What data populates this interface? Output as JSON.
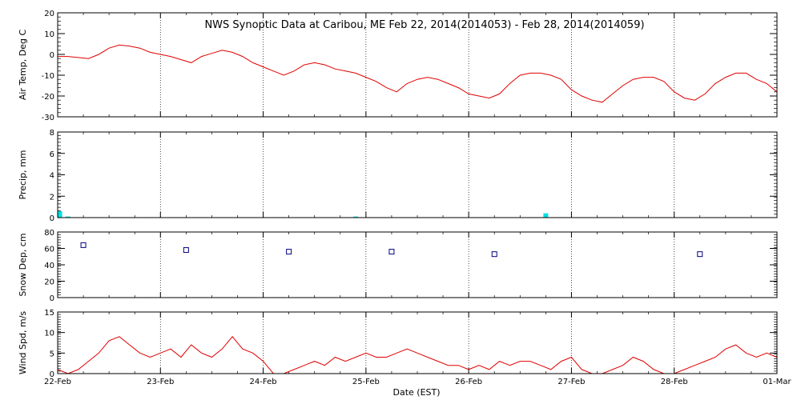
{
  "chart_data": {
    "title": "NWS Synoptic Data at Caribou, ME   Feb 22, 2014(2014053) - Feb 28, 2014(2014059)",
    "xlabel": "Date (EST)",
    "x_tick_labels": [
      "22-Feb",
      "23-Feb",
      "24-Feb",
      "25-Feb",
      "26-Feb",
      "27-Feb",
      "28-Feb",
      "01-Mar"
    ],
    "x_range_days": [
      0,
      7
    ],
    "grid": "dotted vertical at each day",
    "colors": {
      "line": "#e00000",
      "precip": "#00e0e0",
      "snow": "#000080"
    },
    "panels": [
      {
        "id": "air-temp",
        "type": "line",
        "ylabel": "Air Temp, Deg C",
        "ylim": [
          -30,
          20
        ],
        "yticks": [
          -30,
          -20,
          -10,
          0,
          10,
          20
        ],
        "x": [
          0,
          0.1,
          0.2,
          0.3,
          0.4,
          0.5,
          0.6,
          0.7,
          0.8,
          0.9,
          1.0,
          1.1,
          1.2,
          1.3,
          1.4,
          1.5,
          1.6,
          1.7,
          1.8,
          1.9,
          2.0,
          2.1,
          2.2,
          2.3,
          2.4,
          2.5,
          2.6,
          2.7,
          2.8,
          2.9,
          3.0,
          3.1,
          3.2,
          3.3,
          3.4,
          3.5,
          3.6,
          3.7,
          3.8,
          3.9,
          4.0,
          4.1,
          4.2,
          4.3,
          4.4,
          4.5,
          4.6,
          4.7,
          4.8,
          4.9,
          5.0,
          5.1,
          5.2,
          5.3,
          5.4,
          5.5,
          5.6,
          5.7,
          5.8,
          5.9,
          6.0,
          6.1,
          6.2,
          6.3,
          6.4,
          6.5,
          6.6,
          6.7,
          6.8,
          6.9,
          7.0
        ],
        "y": [
          -1,
          -1,
          -1.5,
          -2,
          0,
          3,
          4.5,
          4,
          3,
          1,
          0,
          -1,
          -2.5,
          -4,
          -1,
          0.5,
          2,
          1,
          -1,
          -4,
          -6,
          -8,
          -10,
          -8,
          -5,
          -4,
          -5,
          -7,
          -8,
          -9,
          -11,
          -13,
          -16,
          -18,
          -14,
          -12,
          -11,
          -12,
          -14,
          -16,
          -19,
          -20,
          -21,
          -19,
          -14,
          -10,
          -9,
          -9,
          -10,
          -12,
          -17,
          -20,
          -22,
          -23,
          -19,
          -15,
          -12,
          -11,
          -11,
          -13,
          -18,
          -21,
          -22,
          -19,
          -14,
          -11,
          -9,
          -9,
          -12,
          -14,
          -18
        ]
      },
      {
        "id": "precip",
        "type": "bar",
        "ylabel": "Precip, mm",
        "ylim": [
          0,
          8
        ],
        "yticks": [
          0,
          2,
          4,
          6,
          8
        ],
        "x": [
          0.02,
          0.1,
          2.9,
          4.75
        ],
        "values": [
          0.6,
          0.1,
          0.1,
          0.4
        ]
      },
      {
        "id": "snow-depth",
        "type": "scatter",
        "ylabel": "Snow Dep, cm",
        "ylim": [
          0,
          80
        ],
        "yticks": [
          0,
          20,
          40,
          60,
          80
        ],
        "x": [
          0.25,
          1.25,
          2.25,
          3.25,
          4.25,
          6.25
        ],
        "values": [
          64,
          58,
          56,
          56,
          53,
          53
        ]
      },
      {
        "id": "wind-speed",
        "type": "line",
        "ylabel": "Wind Spd, m/s",
        "ylim": [
          0,
          15
        ],
        "yticks": [
          0,
          5,
          10,
          15
        ],
        "x": [
          0,
          0.1,
          0.2,
          0.3,
          0.4,
          0.5,
          0.6,
          0.7,
          0.8,
          0.9,
          1.0,
          1.1,
          1.2,
          1.3,
          1.4,
          1.5,
          1.6,
          1.7,
          1.8,
          1.9,
          2.0,
          2.1,
          2.2,
          2.3,
          2.4,
          2.5,
          2.6,
          2.7,
          2.8,
          2.9,
          3.0,
          3.1,
          3.2,
          3.3,
          3.4,
          3.5,
          3.6,
          3.7,
          3.8,
          3.9,
          4.0,
          4.1,
          4.2,
          4.3,
          4.4,
          4.5,
          4.6,
          4.7,
          4.8,
          4.9,
          5.0,
          5.1,
          5.2,
          5.3,
          5.4,
          5.5,
          5.6,
          5.7,
          5.8,
          5.9,
          6.0,
          6.1,
          6.2,
          6.3,
          6.4,
          6.5,
          6.6,
          6.7,
          6.8,
          6.9,
          7.0
        ],
        "y": [
          1,
          0,
          1,
          3,
          5,
          8,
          9,
          7,
          5,
          4,
          5,
          6,
          4,
          7,
          5,
          4,
          6,
          9,
          6,
          5,
          3,
          0,
          0,
          1,
          2,
          3,
          2,
          4,
          3,
          4,
          5,
          4,
          4,
          5,
          6,
          5,
          4,
          3,
          2,
          2,
          1,
          2,
          1,
          3,
          2,
          3,
          3,
          2,
          1,
          3,
          4,
          1,
          0,
          0,
          1,
          2,
          4,
          3,
          1,
          0,
          0,
          1,
          2,
          3,
          4,
          6,
          7,
          5,
          4,
          5,
          4
        ]
      }
    ]
  }
}
